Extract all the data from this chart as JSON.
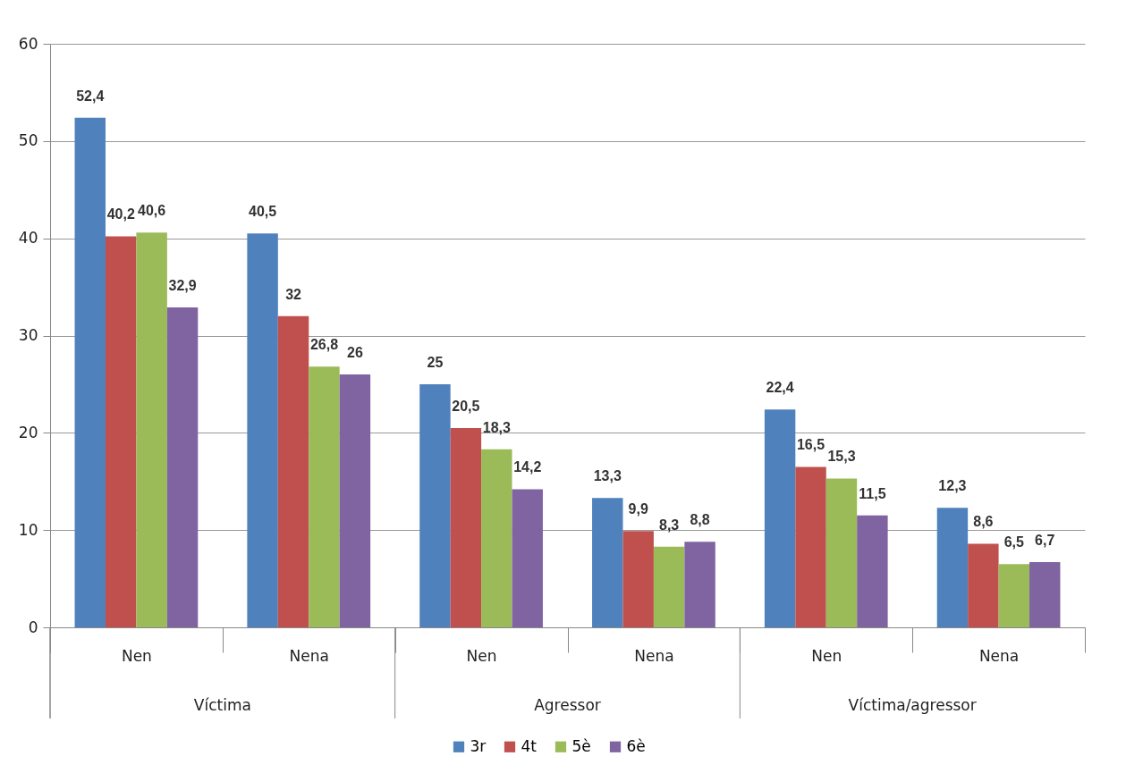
{
  "chart_data": {
    "type": "bar",
    "categories": [
      "Nen",
      "Nena",
      "Nen",
      "Nena",
      "Nen",
      "Nena"
    ],
    "series": [
      {
        "name": "3r",
        "color": "#4f81bd",
        "values": [
          52.4,
          40.5,
          25,
          13.3,
          22.4,
          12.3
        ],
        "value_labels": [
          "52,4",
          "40,5",
          "25",
          "13,3",
          "22,4",
          "12,3"
        ]
      },
      {
        "name": "4t",
        "color": "#c0504d",
        "values": [
          40.2,
          32,
          20.5,
          9.9,
          16.5,
          8.6
        ],
        "value_labels": [
          "40,2",
          "32",
          "20,5",
          "9,9",
          "16,5",
          "8,6"
        ]
      },
      {
        "name": "5è",
        "color": "#9bbb59",
        "values": [
          40.6,
          26.8,
          18.3,
          8.3,
          15.3,
          6.5
        ],
        "value_labels": [
          "40,6",
          "26,8",
          "18,3",
          "8,3",
          "15,3",
          "6,5"
        ]
      },
      {
        "name": "6è",
        "color": "#8064a2",
        "values": [
          32.9,
          26,
          14.2,
          8.8,
          11.5,
          6.7
        ],
        "value_labels": [
          "32,9",
          "26",
          "14,2",
          "8,8",
          "11,5",
          "6,7"
        ]
      }
    ],
    "annotations": [
      "Víctima",
      "Agressor",
      "Víctima/agressor"
    ],
    "ylim": [
      0,
      60
    ],
    "yticks": [
      0,
      10,
      20,
      30,
      40,
      50,
      60
    ],
    "grid": "y",
    "legend": "bottom"
  }
}
